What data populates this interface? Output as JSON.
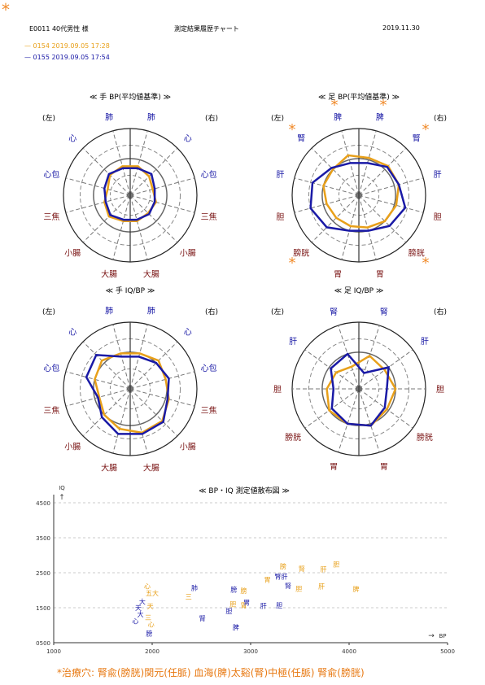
{
  "header": {
    "corner_mark": "*",
    "patient": "E0011 40代男性 様",
    "title": "測定結果履歴チャート",
    "date": "2019.11.30"
  },
  "legend": [
    {
      "line": "—",
      "label": "0154 2019.09.05 17:28",
      "color": "#e8a01a"
    },
    {
      "line": "—",
      "label": "0155 2019.09.05 17:54",
      "color": "#1a1aa6"
    }
  ],
  "colors": {
    "orange": "#e8a01a",
    "blue": "#1a1aa6",
    "meridian_blue": "#1a1aa6",
    "meridian_red": "#7a1414",
    "star": "#f08a2a"
  },
  "side_labels": {
    "left": "(左)",
    "right": "(右)"
  },
  "chart_data": [
    {
      "type": "radar",
      "title": "≪ 手 BP(平均値基準) ≫",
      "axes": [
        "肺",
        "心",
        "心包",
        "三焦",
        "小腸",
        "大腸",
        "大腸",
        "小腸",
        "三焦",
        "心包",
        "心",
        "肺"
      ],
      "axis_tones": [
        "b",
        "b",
        "b",
        "r",
        "r",
        "r",
        "r",
        "r",
        "r",
        "b",
        "b",
        "b"
      ],
      "marks": [],
      "series": [
        {
          "name": "0154 2019.09.05 17:28",
          "values": [
            0.45,
            0.43,
            0.35,
            0.4,
            0.45,
            0.4,
            0.4,
            0.38,
            0.4,
            0.35,
            0.4,
            0.45
          ]
        },
        {
          "name": "0155 2019.09.05 17:54",
          "values": [
            0.42,
            0.45,
            0.4,
            0.38,
            0.42,
            0.38,
            0.38,
            0.4,
            0.38,
            0.38,
            0.45,
            0.42
          ]
        }
      ]
    },
    {
      "type": "radar",
      "title": "≪ 足 BP(平均値基準) ≫",
      "axes": [
        "脾",
        "腎",
        "肝",
        "胆",
        "膀胱",
        "胃",
        "胃",
        "膀胱",
        "胆",
        "肝",
        "腎",
        "脾"
      ],
      "axis_tones": [
        "b",
        "b",
        "b",
        "r",
        "r",
        "r",
        "r",
        "r",
        "r",
        "b",
        "b",
        "b"
      ],
      "marks": [
        "*",
        "*",
        "",
        "",
        "*",
        "",
        "",
        "*",
        "",
        "",
        "*",
        "*"
      ],
      "series": [
        {
          "name": "0154 2019.09.05 17:28",
          "values": [
            0.62,
            0.55,
            0.55,
            0.5,
            0.48,
            0.48,
            0.5,
            0.55,
            0.58,
            0.62,
            0.62,
            0.58
          ]
        },
        {
          "name": "0155 2019.09.05 17:54",
          "values": [
            0.5,
            0.58,
            0.72,
            0.75,
            0.68,
            0.55,
            0.55,
            0.65,
            0.72,
            0.62,
            0.6,
            0.5
          ]
        }
      ]
    },
    {
      "type": "radar",
      "title": "≪ 手 IQ/BP ≫",
      "axes": [
        "肺",
        "心",
        "心包",
        "三焦",
        "小腸",
        "大腸",
        "大腸",
        "小腸",
        "三焦",
        "心包",
        "心",
        "肺"
      ],
      "axis_tones": [
        "b",
        "b",
        "b",
        "r",
        "r",
        "r",
        "r",
        "r",
        "r",
        "b",
        "b",
        "b"
      ],
      "marks": [],
      "series": [
        {
          "name": "0154 2019.09.05 17:28",
          "values": [
            0.55,
            0.6,
            0.55,
            0.48,
            0.55,
            0.62,
            0.68,
            0.68,
            0.6,
            0.55,
            0.6,
            0.55
          ]
        },
        {
          "name": "0155 2019.09.05 17:54",
          "values": [
            0.5,
            0.72,
            0.68,
            0.5,
            0.6,
            0.7,
            0.7,
            0.7,
            0.58,
            0.6,
            0.55,
            0.5
          ]
        }
      ]
    },
    {
      "type": "radar",
      "title": "≪ 足 IQ/BP ≫",
      "axes": [
        "腎",
        "肝",
        "胆",
        "膀胱",
        "胃",
        "胃",
        "膀胱",
        "胆",
        "肝",
        "腎"
      ],
      "axis_tones": [
        "b",
        "b",
        "r",
        "r",
        "r",
        "r",
        "r",
        "r",
        "b",
        "b"
      ],
      "marks": [],
      "series": [
        {
          "name": "0154 2019.09.05 17:28",
          "values": [
            0.35,
            0.42,
            0.48,
            0.55,
            0.55,
            0.58,
            0.52,
            0.55,
            0.48,
            0.52
          ]
        },
        {
          "name": "0155 2019.09.05 17:54",
          "values": [
            0.55,
            0.52,
            0.38,
            0.5,
            0.55,
            0.58,
            0.48,
            0.42,
            0.55,
            0.25
          ]
        }
      ]
    },
    {
      "type": "scatter",
      "title": "≪ BP・IQ 測定値散布図 ≫",
      "ylabel": "IQ",
      "xlabel": "BP",
      "x_ticks": [
        "1000",
        "2000",
        "3000",
        "4000",
        "5000"
      ],
      "y_ticks": [
        "0500",
        "1500",
        "2500",
        "3500",
        "4500"
      ],
      "xlim": [
        1000,
        5000
      ],
      "ylim": [
        500,
        4500
      ],
      "series": [
        {
          "name": "0154 2019.09.05 17:28",
          "points": [
            {
              "x": 1950,
              "y": 2050,
              "label": "心"
            },
            {
              "x": 2000,
              "y": 1850,
              "label": "五大"
            },
            {
              "x": 1980,
              "y": 1480,
              "label": "天"
            },
            {
              "x": 1960,
              "y": 1150,
              "label": "三"
            },
            {
              "x": 1990,
              "y": 950,
              "label": "心"
            },
            {
              "x": 2370,
              "y": 1750,
              "label": "三"
            },
            {
              "x": 2820,
              "y": 1530,
              "label": "胆"
            },
            {
              "x": 2930,
              "y": 1500,
              "label": "胃"
            },
            {
              "x": 2930,
              "y": 1920,
              "label": "膀"
            },
            {
              "x": 3170,
              "y": 2230,
              "label": "胃"
            },
            {
              "x": 3330,
              "y": 2620,
              "label": "膀"
            },
            {
              "x": 3520,
              "y": 2550,
              "label": "腎"
            },
            {
              "x": 3740,
              "y": 2530,
              "label": "肝"
            },
            {
              "x": 3870,
              "y": 2680,
              "label": "胆"
            },
            {
              "x": 3720,
              "y": 2050,
              "label": "肝"
            },
            {
              "x": 3490,
              "y": 1980,
              "label": "胆"
            },
            {
              "x": 4070,
              "y": 1960,
              "label": "脾"
            }
          ]
        },
        {
          "name": "0155 2019.09.05 17:54",
          "points": [
            {
              "x": 1860,
              "y": 1430,
              "label": "天"
            },
            {
              "x": 1880,
              "y": 1250,
              "label": "大"
            },
            {
              "x": 1900,
              "y": 1600,
              "label": "大"
            },
            {
              "x": 1830,
              "y": 1050,
              "label": "心"
            },
            {
              "x": 1970,
              "y": 700,
              "label": "膀"
            },
            {
              "x": 2430,
              "y": 2000,
              "label": "肺"
            },
            {
              "x": 2510,
              "y": 1130,
              "label": "腎"
            },
            {
              "x": 2830,
              "y": 1950,
              "label": "膀"
            },
            {
              "x": 2780,
              "y": 1340,
              "label": "胆"
            },
            {
              "x": 2960,
              "y": 1580,
              "label": "胃"
            },
            {
              "x": 2850,
              "y": 870,
              "label": "脾"
            },
            {
              "x": 3130,
              "y": 1490,
              "label": "肝"
            },
            {
              "x": 3290,
              "y": 1500,
              "label": "胆"
            },
            {
              "x": 3310,
              "y": 2330,
              "label": "腎肝"
            },
            {
              "x": 3380,
              "y": 2060,
              "label": "腎"
            }
          ]
        }
      ]
    }
  ],
  "footer": "*治療穴: 腎兪(膀胱)関元(任脈) 血海(脾)太谿(腎)中極(任脈) 腎兪(膀胱)"
}
